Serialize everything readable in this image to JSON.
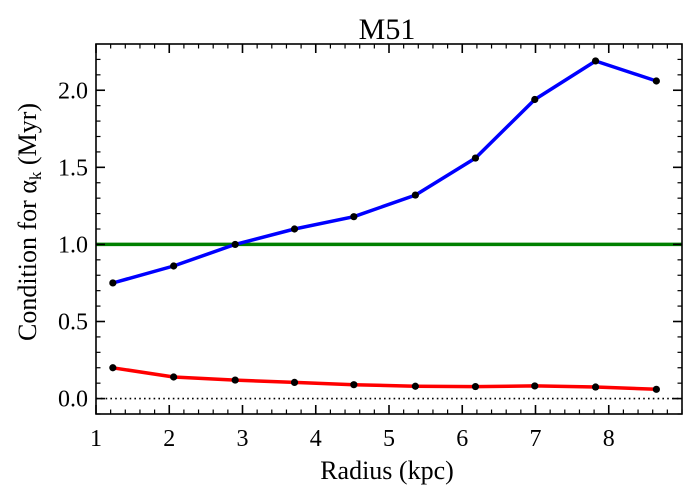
{
  "chart_data": {
    "type": "line",
    "title": "M51",
    "xlabel": "Radius (kpc)",
    "ylabel_main": "Condition for α",
    "ylabel_sub": "k",
    "ylabel_unit": " (Myr)",
    "xlim": [
      1,
      9.0
    ],
    "ylim": [
      -0.1,
      2.3
    ],
    "x_ticks": [
      1,
      2,
      3,
      4,
      5,
      6,
      7,
      8
    ],
    "y_ticks": [
      0.0,
      0.5,
      1.0,
      1.5,
      2.0
    ],
    "x_tick_labels": [
      "1",
      "2",
      "3",
      "4",
      "5",
      "6",
      "7",
      "8"
    ],
    "y_tick_labels": [
      "0.0",
      "0.5",
      "1.0",
      "1.5",
      "2.0"
    ],
    "x": [
      1.23,
      2.06,
      2.9,
      3.71,
      4.52,
      5.36,
      6.18,
      6.99,
      7.82,
      8.65
    ],
    "series": [
      {
        "color": "#0000ff",
        "values": [
          0.75,
          0.86,
          1.0,
          1.1,
          1.18,
          1.32,
          1.56,
          1.94,
          2.19,
          2.06
        ]
      },
      {
        "color": "#ff0000",
        "values": [
          0.2,
          0.14,
          0.12,
          0.105,
          0.09,
          0.08,
          0.078,
          0.082,
          0.075,
          0.06
        ]
      }
    ],
    "hlines": [
      {
        "y": 1.0,
        "color": "#008000",
        "style": "solid"
      },
      {
        "y": 0.0,
        "color": "#000000",
        "style": "dotted"
      }
    ],
    "marker_color": "#000000",
    "grid": false,
    "legend": "none"
  }
}
